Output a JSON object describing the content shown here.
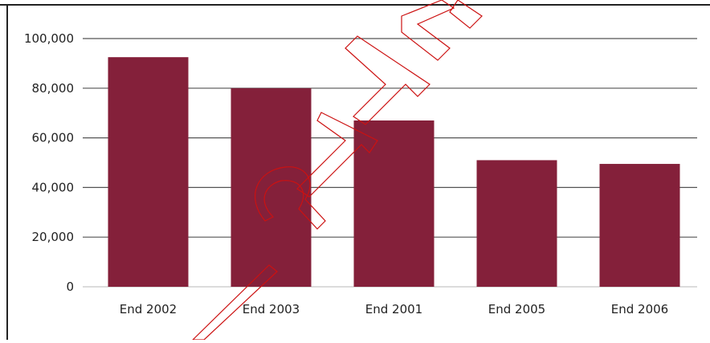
{
  "chart_data": {
    "type": "bar",
    "categories": [
      "End 2002",
      "End 2003",
      "End 2001",
      "End 2005",
      "End 2006"
    ],
    "values": [
      92500,
      80000,
      67000,
      51000,
      49500
    ],
    "ylim": [
      0,
      100000
    ],
    "yticks": [
      0,
      20000,
      40000,
      60000,
      80000,
      100000
    ],
    "ytick_labels": [
      "0",
      "20,000",
      "40,000",
      "60,000",
      "80,000",
      "100,000"
    ],
    "grid": true,
    "bar_color": "#84203a",
    "watermark": "PD-27MA"
  }
}
